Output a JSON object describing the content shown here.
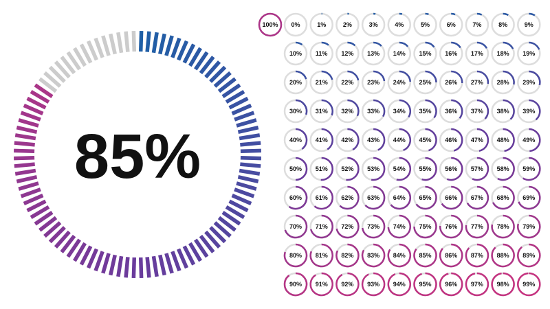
{
  "big_gauge": {
    "value": 85,
    "label": "85%"
  },
  "colors": {
    "start": "#1f5fa6",
    "mid": "#6a3b9c",
    "end": "#c8337f",
    "track": "#cccccc"
  },
  "small_gauges": [
    {
      "value": 100,
      "label": "100%"
    },
    {
      "value": 0,
      "label": "0%"
    },
    {
      "value": 1,
      "label": "1%"
    },
    {
      "value": 2,
      "label": "2%"
    },
    {
      "value": 3,
      "label": "3%"
    },
    {
      "value": 4,
      "label": "4%"
    },
    {
      "value": 5,
      "label": "5%"
    },
    {
      "value": 6,
      "label": "6%"
    },
    {
      "value": 7,
      "label": "7%"
    },
    {
      "value": 8,
      "label": "8%"
    },
    {
      "value": 9,
      "label": "9%"
    },
    {
      "value": 10,
      "label": "10%"
    },
    {
      "value": 11,
      "label": "11%"
    },
    {
      "value": 12,
      "label": "12%"
    },
    {
      "value": 13,
      "label": "13%"
    },
    {
      "value": 14,
      "label": "14%"
    },
    {
      "value": 15,
      "label": "15%"
    },
    {
      "value": 16,
      "label": "16%"
    },
    {
      "value": 17,
      "label": "17%"
    },
    {
      "value": 18,
      "label": "18%"
    },
    {
      "value": 19,
      "label": "19%"
    },
    {
      "value": 20,
      "label": "20%"
    },
    {
      "value": 21,
      "label": "21%"
    },
    {
      "value": 22,
      "label": "22%"
    },
    {
      "value": 23,
      "label": "23%"
    },
    {
      "value": 24,
      "label": "24%"
    },
    {
      "value": 25,
      "label": "25%"
    },
    {
      "value": 26,
      "label": "26%"
    },
    {
      "value": 27,
      "label": "27%"
    },
    {
      "value": 28,
      "label": "28%"
    },
    {
      "value": 29,
      "label": "29%"
    },
    {
      "value": 30,
      "label": "30%"
    },
    {
      "value": 31,
      "label": "31%"
    },
    {
      "value": 32,
      "label": "32%"
    },
    {
      "value": 33,
      "label": "33%"
    },
    {
      "value": 34,
      "label": "34%"
    },
    {
      "value": 35,
      "label": "35%"
    },
    {
      "value": 36,
      "label": "36%"
    },
    {
      "value": 37,
      "label": "37%"
    },
    {
      "value": 38,
      "label": "38%"
    },
    {
      "value": 39,
      "label": "39%"
    },
    {
      "value": 40,
      "label": "40%"
    },
    {
      "value": 41,
      "label": "41%"
    },
    {
      "value": 42,
      "label": "42%"
    },
    {
      "value": 43,
      "label": "43%"
    },
    {
      "value": 44,
      "label": "44%"
    },
    {
      "value": 45,
      "label": "45%"
    },
    {
      "value": 46,
      "label": "46%"
    },
    {
      "value": 47,
      "label": "47%"
    },
    {
      "value": 48,
      "label": "48%"
    },
    {
      "value": 49,
      "label": "49%"
    },
    {
      "value": 50,
      "label": "50%"
    },
    {
      "value": 51,
      "label": "51%"
    },
    {
      "value": 52,
      "label": "52%"
    },
    {
      "value": 53,
      "label": "53%"
    },
    {
      "value": 54,
      "label": "54%"
    },
    {
      "value": 55,
      "label": "55%"
    },
    {
      "value": 56,
      "label": "56%"
    },
    {
      "value": 57,
      "label": "57%"
    },
    {
      "value": 58,
      "label": "58%"
    },
    {
      "value": 59,
      "label": "59%"
    },
    {
      "value": 60,
      "label": "60%"
    },
    {
      "value": 61,
      "label": "61%"
    },
    {
      "value": 62,
      "label": "62%"
    },
    {
      "value": 63,
      "label": "63%"
    },
    {
      "value": 64,
      "label": "64%"
    },
    {
      "value": 65,
      "label": "65%"
    },
    {
      "value": 66,
      "label": "66%"
    },
    {
      "value": 67,
      "label": "67%"
    },
    {
      "value": 68,
      "label": "68%"
    },
    {
      "value": 69,
      "label": "69%"
    },
    {
      "value": 70,
      "label": "70%"
    },
    {
      "value": 71,
      "label": "71%"
    },
    {
      "value": 72,
      "label": "72%"
    },
    {
      "value": 73,
      "label": "73%"
    },
    {
      "value": 74,
      "label": "74%"
    },
    {
      "value": 75,
      "label": "75%"
    },
    {
      "value": 76,
      "label": "76%"
    },
    {
      "value": 77,
      "label": "77%"
    },
    {
      "value": 78,
      "label": "78%"
    },
    {
      "value": 79,
      "label": "79%"
    },
    {
      "value": 80,
      "label": "80%"
    },
    {
      "value": 81,
      "label": "81%"
    },
    {
      "value": 82,
      "label": "82%"
    },
    {
      "value": 83,
      "label": "83%"
    },
    {
      "value": 84,
      "label": "84%"
    },
    {
      "value": 85,
      "label": "85%"
    },
    {
      "value": 86,
      "label": "86%"
    },
    {
      "value": 87,
      "label": "87%"
    },
    {
      "value": 88,
      "label": "88%"
    },
    {
      "value": 89,
      "label": "89%"
    },
    {
      "value": 90,
      "label": "90%"
    },
    {
      "value": 91,
      "label": "91%"
    },
    {
      "value": 92,
      "label": "92%"
    },
    {
      "value": 93,
      "label": "93%"
    },
    {
      "value": 94,
      "label": "94%"
    },
    {
      "value": 95,
      "label": "95%"
    },
    {
      "value": 96,
      "label": "96%"
    },
    {
      "value": 97,
      "label": "97%"
    },
    {
      "value": 98,
      "label": "98%"
    },
    {
      "value": 99,
      "label": "99%"
    }
  ]
}
